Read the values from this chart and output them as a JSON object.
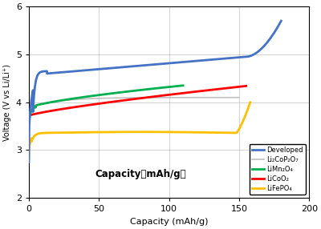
{
  "xlabel": "Capacity (mAh/g)",
  "ylabel": "Voltage (V vs Li/Li⁺)",
  "xlim": [
    0,
    200
  ],
  "ylim": [
    2,
    6
  ],
  "xticks": [
    0,
    50,
    100,
    150,
    200
  ],
  "yticks": [
    2,
    3,
    4,
    5,
    6
  ],
  "annotation": "Capacity（mAh/g）",
  "colors": {
    "developed": "#4472C4",
    "li2cop2o7": "#C0C0C0",
    "limn2o4": "#00B050",
    "licoo2": "#FF0000",
    "lifepo4": "#FFC000"
  },
  "background": "#FFFFFF",
  "grid_color": "#999999",
  "figsize": [
    4.0,
    2.86
  ],
  "dpi": 100
}
